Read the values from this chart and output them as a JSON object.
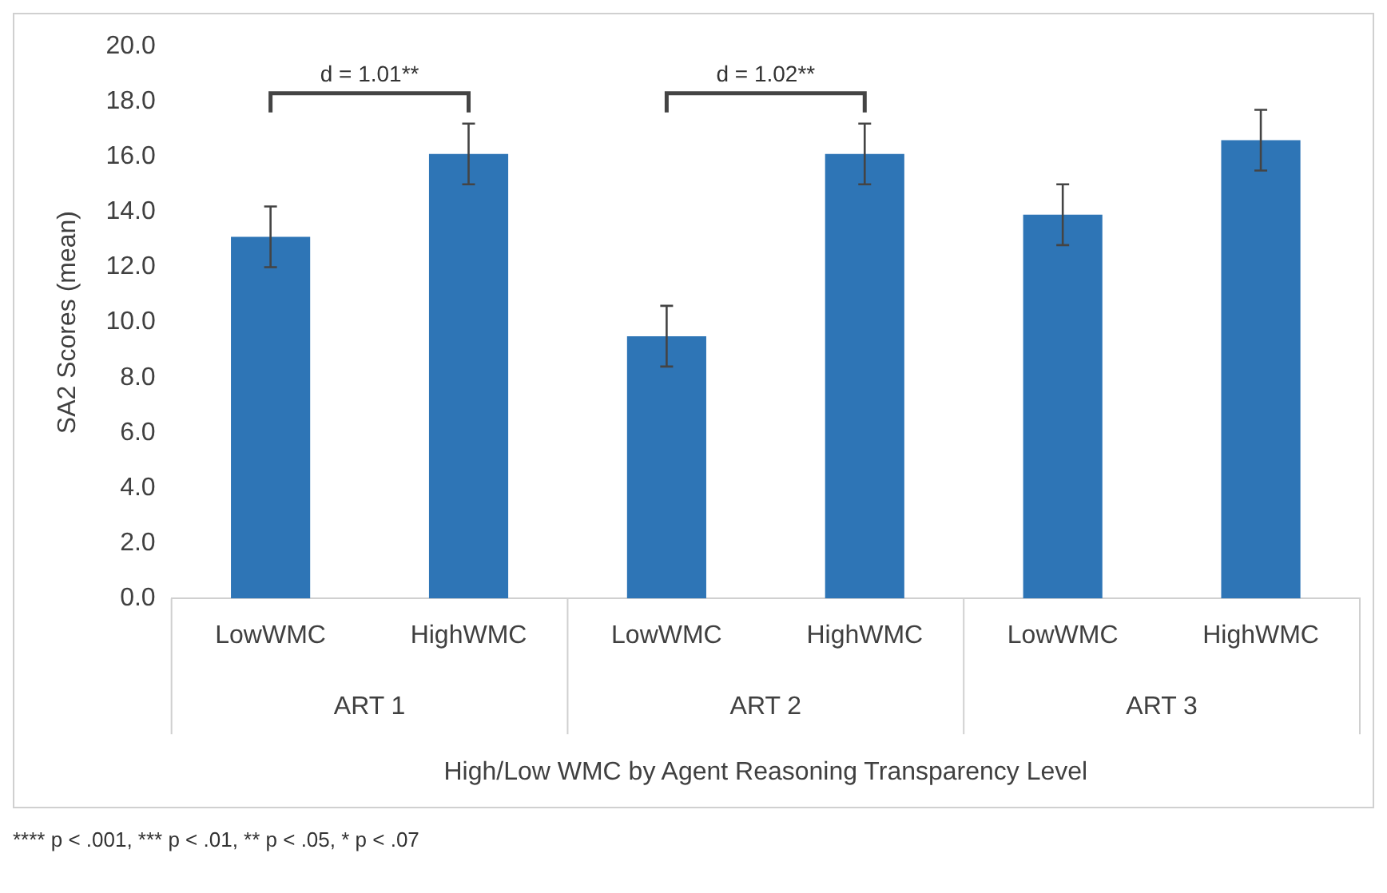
{
  "chart_data": {
    "type": "bar",
    "ylabel": "SA2 Scores (mean)",
    "xlabel": "High/Low WMC by Agent Reasoning Transparency Level",
    "categories": [
      "LowWMC",
      "HighWMC",
      "LowWMC",
      "HighWMC",
      "LowWMC",
      "HighWMC"
    ],
    "values": [
      13.1,
      16.1,
      9.5,
      16.1,
      13.9,
      16.6
    ],
    "errors": [
      1.1,
      1.1,
      1.1,
      1.1,
      1.1,
      1.1
    ],
    "color": "#2e75b6",
    "ylim": [
      0,
      20
    ],
    "yticks": [
      {
        "value": 0,
        "label": "0.0"
      },
      {
        "value": 2,
        "label": "2.0"
      },
      {
        "value": 4,
        "label": "4.0"
      },
      {
        "value": 6,
        "label": "6.0"
      },
      {
        "value": 8,
        "label": "8.0"
      },
      {
        "value": 10,
        "label": "10.0"
      },
      {
        "value": 12,
        "label": "12.0"
      },
      {
        "value": 14,
        "label": "14.0"
      },
      {
        "value": 16,
        "label": "16.0"
      },
      {
        "value": 18,
        "label": "18.0"
      },
      {
        "value": 20,
        "label": "20.0"
      }
    ],
    "grid": false,
    "legend": false,
    "annotations": [
      "d = 1.01**",
      "d = 1.02**",
      "ART 1",
      "ART 2",
      "ART 3",
      "**** p < .001, *** p < .01, ** p < .05, * p < .07"
    ]
  }
}
